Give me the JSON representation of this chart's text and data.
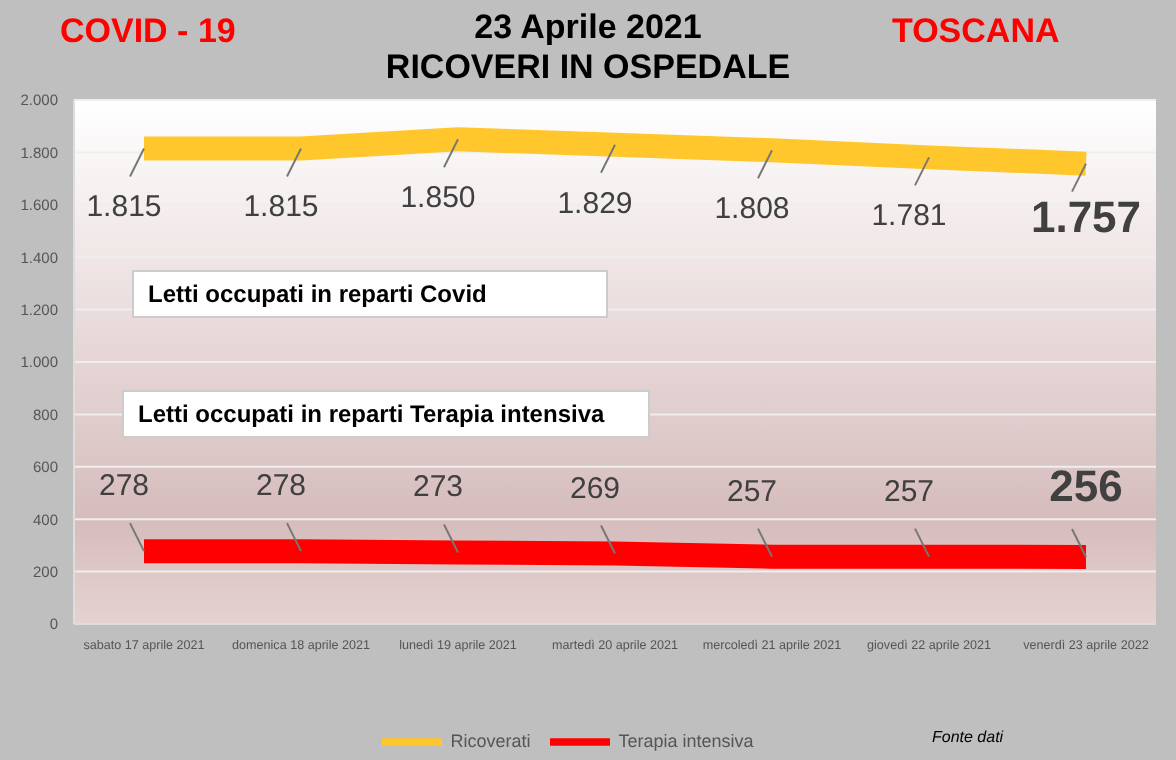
{
  "chart_data": {
    "type": "line",
    "title": "23 Aprile 2021\nRICOVERI IN OSPEDALE",
    "subtitle": "COVID - 19",
    "annotations": [
      "TOSCANA",
      "Letti occupati in reparti Covid",
      "Letti occupati in reparti Terapia intensiva",
      "Fonte dati"
    ],
    "categories": [
      "sabato 17 aprile 2021",
      "domenica 18 aprile 2021",
      "lunedì 19 aprile 2021",
      "martedì 20 aprile 2021",
      "mercoledì 21 aprile 2021",
      "giovedì 22 aprile 2021",
      "venerdì 23 aprile 2022"
    ],
    "series": [
      {
        "name": "Ricoverati",
        "color": "#ffc72c",
        "values": [
          1815,
          1815,
          1850,
          1829,
          1808,
          1781,
          1757
        ],
        "value_labels": [
          "1.815",
          "1.815",
          "1.850",
          "1.829",
          "1.808",
          "1.781",
          "1.757"
        ]
      },
      {
        "name": "Terapia intensiva",
        "color": "#ff0000",
        "values": [
          278,
          278,
          273,
          269,
          257,
          257,
          256
        ],
        "value_labels": [
          "278",
          "278",
          "273",
          "269",
          "257",
          "257",
          "256"
        ]
      }
    ],
    "ylim": [
      0,
      2000
    ],
    "yticks": [
      0,
      200,
      400,
      600,
      800,
      {
        "value": 1000,
        "label": "1.000"
      },
      {
        "value": 1200,
        "label": "1.200"
      },
      {
        "value": 1400,
        "label": "1.400"
      },
      {
        "value": 1600,
        "label": "1.600"
      },
      {
        "value": 1800,
        "label": "1.800"
      },
      {
        "value": 2000,
        "label": "2.000"
      }
    ],
    "grid": "y",
    "legend": "bottom",
    "marker": "none",
    "line_style": "solid"
  }
}
